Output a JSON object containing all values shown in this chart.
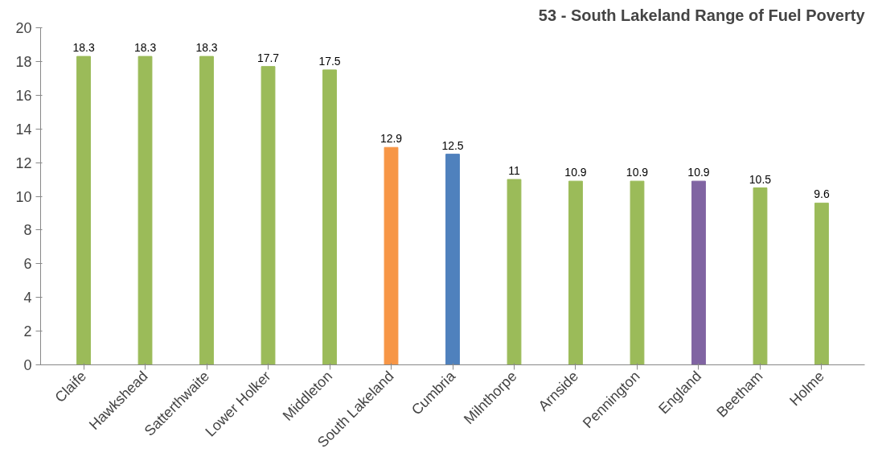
{
  "chart_data": {
    "type": "bar",
    "title": "53 - South Lakeland Range of Fuel Poverty",
    "categories": [
      "Claife",
      "Hawkshead",
      "Satterthwaite",
      "Lower Holker",
      "Middleton",
      "South Lakeland",
      "Cumbria",
      "Milnthorpe",
      "Arnside",
      "Pennington",
      "England",
      "Beetham",
      "Holme"
    ],
    "values": [
      18.3,
      18.3,
      18.3,
      17.7,
      17.5,
      12.9,
      12.5,
      11,
      10.9,
      10.9,
      10.9,
      10.5,
      9.6
    ],
    "colors": [
      "#9bbb59",
      "#9bbb59",
      "#9bbb59",
      "#9bbb59",
      "#9bbb59",
      "#f79646",
      "#4f81bd",
      "#9bbb59",
      "#9bbb59",
      "#9bbb59",
      "#8064a2",
      "#9bbb59",
      "#9bbb59"
    ],
    "ylim": [
      0,
      20
    ],
    "yticks": [
      0,
      2,
      4,
      6,
      8,
      10,
      12,
      14,
      16,
      18,
      20
    ],
    "grid": false,
    "data_labels": true
  }
}
